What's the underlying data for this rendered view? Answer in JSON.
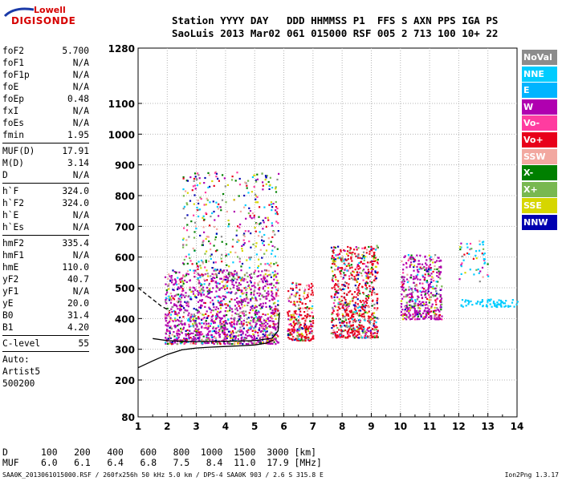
{
  "logo": {
    "brand": "Lowell",
    "product": "DIGISONDE"
  },
  "header": {
    "line1": "Station YYYY DAY   DDD HHMMSS P1  FFS S AXN PPS IGA PS",
    "line2": "SaoLuis 2013 Mar02 061 015000 RSF 005 2 713 100 10+ 22"
  },
  "params": {
    "group1": [
      {
        "name": "foF2",
        "value": "5.700"
      },
      {
        "name": "foF1",
        "value": "N/A"
      },
      {
        "name": "foF1p",
        "value": "N/A"
      },
      {
        "name": "foE",
        "value": "N/A"
      },
      {
        "name": "foEp",
        "value": "0.48"
      },
      {
        "name": "fxI",
        "value": "N/A"
      },
      {
        "name": "foEs",
        "value": "N/A"
      },
      {
        "name": "fmin",
        "value": "1.95"
      }
    ],
    "group2": [
      {
        "name": "MUF(D)",
        "value": "17.91"
      },
      {
        "name": "M(D)",
        "value": "3.14"
      },
      {
        "name": "D",
        "value": "N/A"
      }
    ],
    "group3": [
      {
        "name": "h`F",
        "value": "324.0"
      },
      {
        "name": "h`F2",
        "value": "324.0"
      },
      {
        "name": "h`E",
        "value": "N/A"
      },
      {
        "name": "h`Es",
        "value": "N/A"
      }
    ],
    "group4": [
      {
        "name": "hmF2",
        "value": "335.4"
      },
      {
        "name": "hmF1",
        "value": "N/A"
      },
      {
        "name": "hmE",
        "value": "110.0"
      },
      {
        "name": "yF2",
        "value": "40.7"
      },
      {
        "name": "yF1",
        "value": "N/A"
      },
      {
        "name": "yE",
        "value": "20.0"
      },
      {
        "name": "B0",
        "value": "31.4"
      },
      {
        "name": "B1",
        "value": "4.20"
      }
    ],
    "clevel": {
      "name": "C-level",
      "value": "55"
    },
    "autoscale": [
      "Auto:",
      "Artist5",
      "500200"
    ]
  },
  "legend": [
    {
      "label": "NoVal",
      "color": "#8c8c8c"
    },
    {
      "label": "NNE",
      "color": "#00ccff"
    },
    {
      "label": "E",
      "color": "#00b4ff"
    },
    {
      "label": "W",
      "color": "#b000b0"
    },
    {
      "label": "Vo-",
      "color": "#ff3ca0"
    },
    {
      "label": "Vo+",
      "color": "#e8001a"
    },
    {
      "label": "SSW",
      "color": "#f2a8a0"
    },
    {
      "label": "X-",
      "color": "#008000"
    },
    {
      "label": "X+",
      "color": "#78b850"
    },
    {
      "label": "SSE",
      "color": "#d6d600"
    },
    {
      "label": "NNW",
      "color": "#0000b0"
    }
  ],
  "muf_table": {
    "d_label": "D",
    "d_values": [
      "100",
      "200",
      "400",
      "600",
      "800",
      "1000",
      "1500",
      "3000"
    ],
    "d_unit": "[km]",
    "muf_label": "MUF",
    "muf_values": [
      "6.0",
      "6.1",
      "6.4",
      "6.8",
      "7.5",
      "8.4",
      "11.0",
      "17.9"
    ],
    "muf_unit": "[MHz]"
  },
  "footer": {
    "left": "SAA0K_2013061015000.RSF / 260fx256h 50 kHz 5.0 km / DPS-4 SAA0K 903 / 2.6 S 315.8 E",
    "right": "Ion2Png 1.3.17"
  },
  "chart_data": {
    "type": "scatter",
    "x_ticks": [
      "1",
      "2",
      "3",
      "4",
      "5",
      "6",
      "7",
      "8",
      "9",
      "10",
      "11",
      "12",
      "13",
      "14"
    ],
    "y_ticks": [
      "80",
      "200",
      "300",
      "400",
      "500",
      "600",
      "700",
      "800",
      "900",
      "1000",
      "1100",
      "1280"
    ],
    "xlim": [
      1,
      14
    ],
    "ylim": [
      80,
      1280
    ],
    "grid": true,
    "legend_position": "right",
    "echo_clusters": [
      {
        "x_range": [
          1.9,
          5.8
        ],
        "y_range": [
          320,
          560
        ],
        "dominant": "W"
      },
      {
        "x_range": [
          2.5,
          5.8
        ],
        "y_range": [
          560,
          880
        ],
        "dominant": "mixed"
      },
      {
        "x_range": [
          6.1,
          7.0
        ],
        "y_range": [
          330,
          520
        ],
        "dominant": "Vo+"
      },
      {
        "x_range": [
          7.6,
          9.2
        ],
        "y_range": [
          340,
          640
        ],
        "dominant": "Vo+"
      },
      {
        "x_range": [
          10.0,
          11.4
        ],
        "y_range": [
          400,
          610
        ],
        "dominant": "W"
      },
      {
        "x_range": [
          12.0,
          13.0
        ],
        "y_range": [
          520,
          670
        ],
        "dominant": "NNE"
      }
    ],
    "o_trace": {
      "color": "#000000",
      "points": [
        [
          1.0,
          240
        ],
        [
          1.5,
          262
        ],
        [
          2.0,
          283
        ],
        [
          2.5,
          298
        ],
        [
          3.0,
          304
        ],
        [
          3.5,
          307
        ],
        [
          4.0,
          309
        ],
        [
          4.5,
          311
        ],
        [
          5.0,
          314
        ],
        [
          5.4,
          320
        ],
        [
          5.65,
          330
        ]
      ]
    },
    "x_trace": {
      "color": "#000000",
      "points": [
        [
          1.5,
          335
        ],
        [
          2.0,
          328
        ],
        [
          2.5,
          326
        ],
        [
          3.0,
          325
        ],
        [
          4.0,
          326
        ],
        [
          5.0,
          328
        ],
        [
          5.6,
          336
        ],
        [
          5.8,
          360
        ],
        [
          5.85,
          420
        ]
      ]
    },
    "dashed_trace": {
      "color": "#000000",
      "points": [
        [
          1.0,
          500
        ],
        [
          1.4,
          470
        ],
        [
          1.8,
          440
        ],
        [
          2.1,
          425
        ]
      ]
    }
  }
}
